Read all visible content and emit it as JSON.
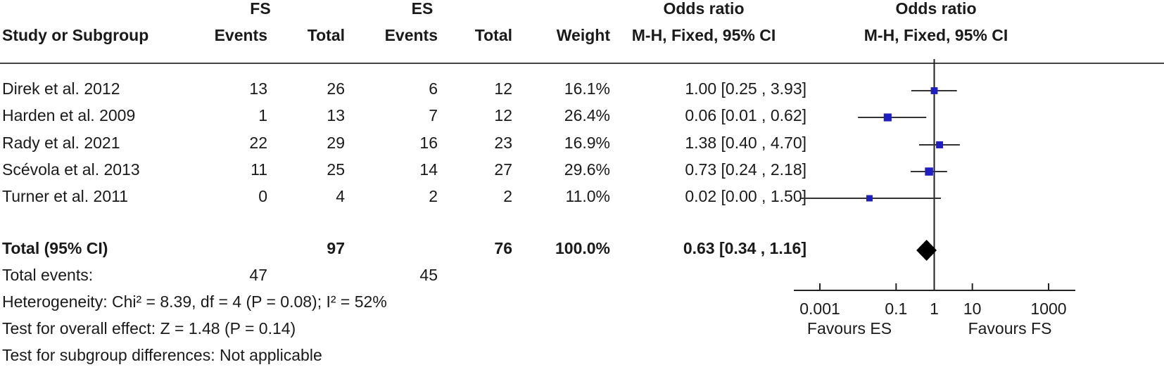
{
  "header": {
    "group1": "FS",
    "group2": "ES",
    "study": "Study or Subgroup",
    "events": "Events",
    "total": "Total",
    "weight": "Weight",
    "or_title": "Odds ratio",
    "or_method": "M-H, Fixed, 95% CI",
    "plot_title": "Odds ratio",
    "plot_method": "M-H, Fixed, 95% CI"
  },
  "studies": [
    {
      "name": "Direk et al. 2012",
      "fs_events": "13",
      "fs_total": "26",
      "es_events": "6",
      "es_total": "12",
      "weight": "16.1%",
      "ci_text": "1.00 [0.25 , 3.93]"
    },
    {
      "name": "Harden et al. 2009",
      "fs_events": "1",
      "fs_total": "13",
      "es_events": "7",
      "es_total": "12",
      "weight": "26.4%",
      "ci_text": "0.06 [0.01 , 0.62]"
    },
    {
      "name": "Rady et al. 2021",
      "fs_events": "22",
      "fs_total": "29",
      "es_events": "16",
      "es_total": "23",
      "weight": "16.9%",
      "ci_text": "1.38 [0.40 , 4.70]"
    },
    {
      "name": "Scévola et al. 2013",
      "fs_events": "11",
      "fs_total": "25",
      "es_events": "14",
      "es_total": "27",
      "weight": "29.6%",
      "ci_text": "0.73 [0.24 , 2.18]"
    },
    {
      "name": "Turner et al. 2011",
      "fs_events": "0",
      "fs_total": "4",
      "es_events": "2",
      "es_total": "2",
      "weight": "11.0%",
      "ci_text": "0.02 [0.00 , 1.50]"
    }
  ],
  "total_row": {
    "label": "Total (95% CI)",
    "fs_total": "97",
    "es_total": "76",
    "weight": "100.0%",
    "ci_text": "0.63 [0.34 , 1.16]"
  },
  "events_row": {
    "label": "Total events:",
    "fs_events": "47",
    "es_events": "45"
  },
  "footnotes": {
    "heterogeneity": "Heterogeneity: Chi² = 8.39, df = 4 (P = 0.08); I² = 52%",
    "overall": "Test for overall effect: Z = 1.48 (P = 0.14)",
    "subgroup": "Test for subgroup differences: Not applicable"
  },
  "colors": {
    "marker": "#1f1fbf",
    "line": "#333333",
    "diamond": "#000000"
  },
  "chart_data": {
    "type": "scatter",
    "subtype": "forest-plot",
    "scale": "log10",
    "xlim": [
      0.001,
      1000
    ],
    "ticks": [
      0.001,
      0.1,
      1,
      10,
      1000
    ],
    "tick_labels": [
      "0.001",
      "0.1",
      "1",
      "10",
      "1000"
    ],
    "favours_left": "Favours ES",
    "favours_right": "Favours FS",
    "points": [
      {
        "or": 1.0,
        "lo": 0.25,
        "hi": 3.93,
        "weight": 16.1
      },
      {
        "or": 0.06,
        "lo": 0.01,
        "hi": 0.62,
        "weight": 26.4
      },
      {
        "or": 1.38,
        "lo": 0.4,
        "hi": 4.7,
        "weight": 16.9
      },
      {
        "or": 0.73,
        "lo": 0.24,
        "hi": 2.18,
        "weight": 29.6
      },
      {
        "or": 0.02,
        "lo": 0.0,
        "hi": 1.5,
        "weight": 11.0
      }
    ],
    "pooled": {
      "or": 0.63,
      "lo": 0.34,
      "hi": 1.16
    }
  }
}
